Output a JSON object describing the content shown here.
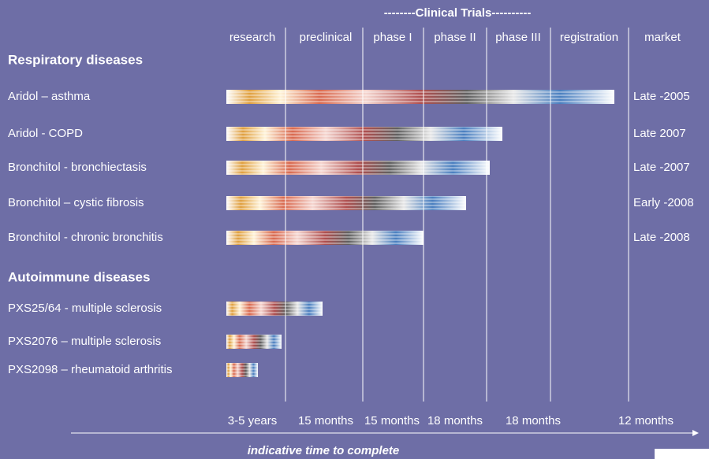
{
  "header": {
    "group": "--------Clinical Trials----------",
    "phases": [
      "research",
      "preclinical",
      "phase I",
      "phase II",
      "phase III",
      "registration",
      "market"
    ]
  },
  "sections": [
    {
      "title": "Respiratory diseases",
      "rows": [
        {
          "label": "Aridol – asthma",
          "market": "Late -2005"
        },
        {
          "label": "Aridol - COPD",
          "market": "Late 2007"
        },
        {
          "label": "Bronchitol - bronchiectasis",
          "market": "Late -2007"
        },
        {
          "label": "Bronchitol – cystic fibrosis",
          "market": "Early -2008"
        },
        {
          "label": "Bronchitol - chronic bronchitis",
          "market": "Late -2008"
        }
      ]
    },
    {
      "title": "Autoimmune diseases",
      "rows": [
        {
          "label": "PXS25/64 - multiple sclerosis"
        },
        {
          "label": "PXS2076 – multiple sclerosis"
        },
        {
          "label": "PXS2098 – rheumatoid arthritis"
        }
      ]
    }
  ],
  "durations": [
    "3-5 years",
    "15 months",
    "15 months",
    "18 months",
    "18 months",
    "12 months"
  ],
  "footer": "indicative time to complete"
}
